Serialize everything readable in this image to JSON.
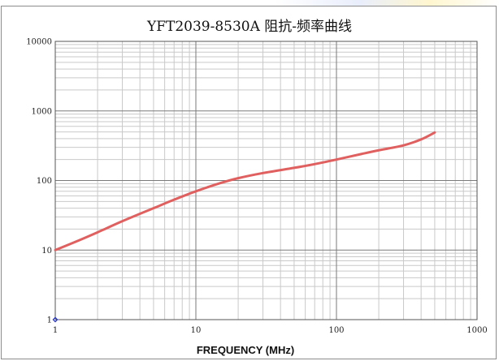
{
  "chart_data": {
    "type": "line",
    "title": "YFT2039-8530A 阻抗-频率曲线",
    "xlabel": "FREQUENCY (MHz)",
    "ylabel": "",
    "x_scale": "log",
    "y_scale": "log",
    "xlim": [
      1,
      1000
    ],
    "ylim": [
      1,
      10000
    ],
    "x_ticks": [
      "1",
      "10",
      "100",
      "1000"
    ],
    "y_ticks": [
      "1",
      "10",
      "100",
      "1000",
      "10000"
    ],
    "grid": true,
    "legend": "none",
    "series": [
      {
        "color": "#e06060",
        "x": [
          1,
          1.5,
          2,
          3,
          5,
          7,
          10,
          15,
          20,
          30,
          50,
          70,
          100,
          150,
          200,
          300,
          400,
          500
        ],
        "y": [
          10,
          14,
          18,
          26,
          40,
          53,
          70,
          92,
          108,
          128,
          152,
          172,
          200,
          240,
          272,
          320,
          390,
          490
        ]
      }
    ],
    "markers": [
      {
        "x": 1,
        "y": 1,
        "color": "#2233cc",
        "shape": "diamond"
      }
    ]
  }
}
